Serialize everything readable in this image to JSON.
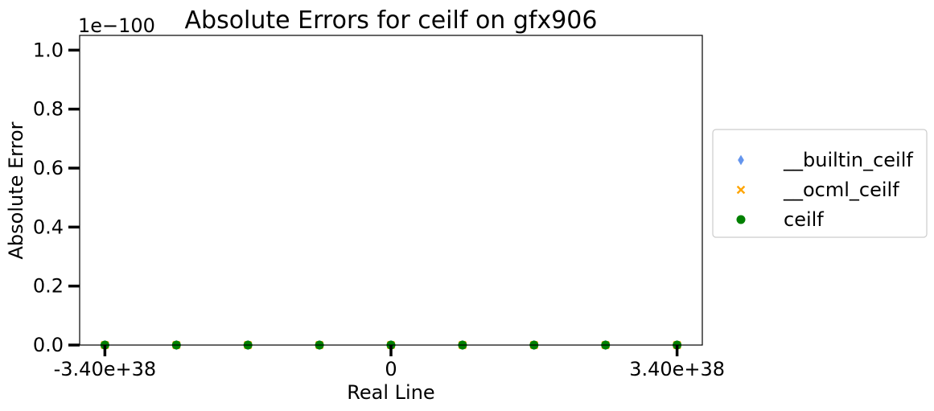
{
  "chart_data": {
    "type": "scatter",
    "title": "Absolute Errors for ceilf on gfx906",
    "xlabel": "Real Line",
    "ylabel": "Absolute Error",
    "y_offset_label": "1e−100",
    "xlim": [
      -3.7e+38,
      3.7e+38
    ],
    "ylim": [
      0,
      1.05
    ],
    "x_ticks": [
      {
        "value": -3.4e+38,
        "label": "-3.40e+38"
      },
      {
        "value": 0,
        "label": "0"
      },
      {
        "value": 3.4e+38,
        "label": "3.40e+38"
      }
    ],
    "y_ticks": [
      {
        "value": 0.0,
        "label": "0.0"
      },
      {
        "value": 0.2,
        "label": "0.2"
      },
      {
        "value": 0.4,
        "label": "0.4"
      },
      {
        "value": 0.6,
        "label": "0.6"
      },
      {
        "value": 0.8,
        "label": "0.8"
      },
      {
        "value": 1.0,
        "label": "1.0"
      }
    ],
    "grid": false,
    "legend_position": "outside-right",
    "series": [
      {
        "name": "__builtin_ceilf",
        "marker": "diamond",
        "color": "#6495ed",
        "x": [
          -3.4e+38,
          -2.55e+38,
          -1.7e+38,
          -8.5e+37,
          0,
          8.5e+37,
          1.7e+38,
          2.55e+38,
          3.4e+38
        ],
        "y": [
          0,
          0,
          0,
          0,
          0,
          0,
          0,
          0,
          0
        ]
      },
      {
        "name": "__ocml_ceilf",
        "marker": "x",
        "color": "#ffa500",
        "x": [
          -3.4e+38,
          -2.55e+38,
          -1.7e+38,
          -8.5e+37,
          0,
          8.5e+37,
          1.7e+38,
          2.55e+38,
          3.4e+38
        ],
        "y": [
          0,
          0,
          0,
          0,
          0,
          0,
          0,
          0,
          0
        ]
      },
      {
        "name": "ceilf",
        "marker": "circle",
        "color": "#008000",
        "x": [
          -3.4e+38,
          -2.55e+38,
          -1.7e+38,
          -8.5e+37,
          0,
          8.5e+37,
          1.7e+38,
          2.55e+38,
          3.4e+38
        ],
        "y": [
          0,
          0,
          0,
          0,
          0,
          0,
          0,
          0,
          0
        ]
      }
    ]
  }
}
